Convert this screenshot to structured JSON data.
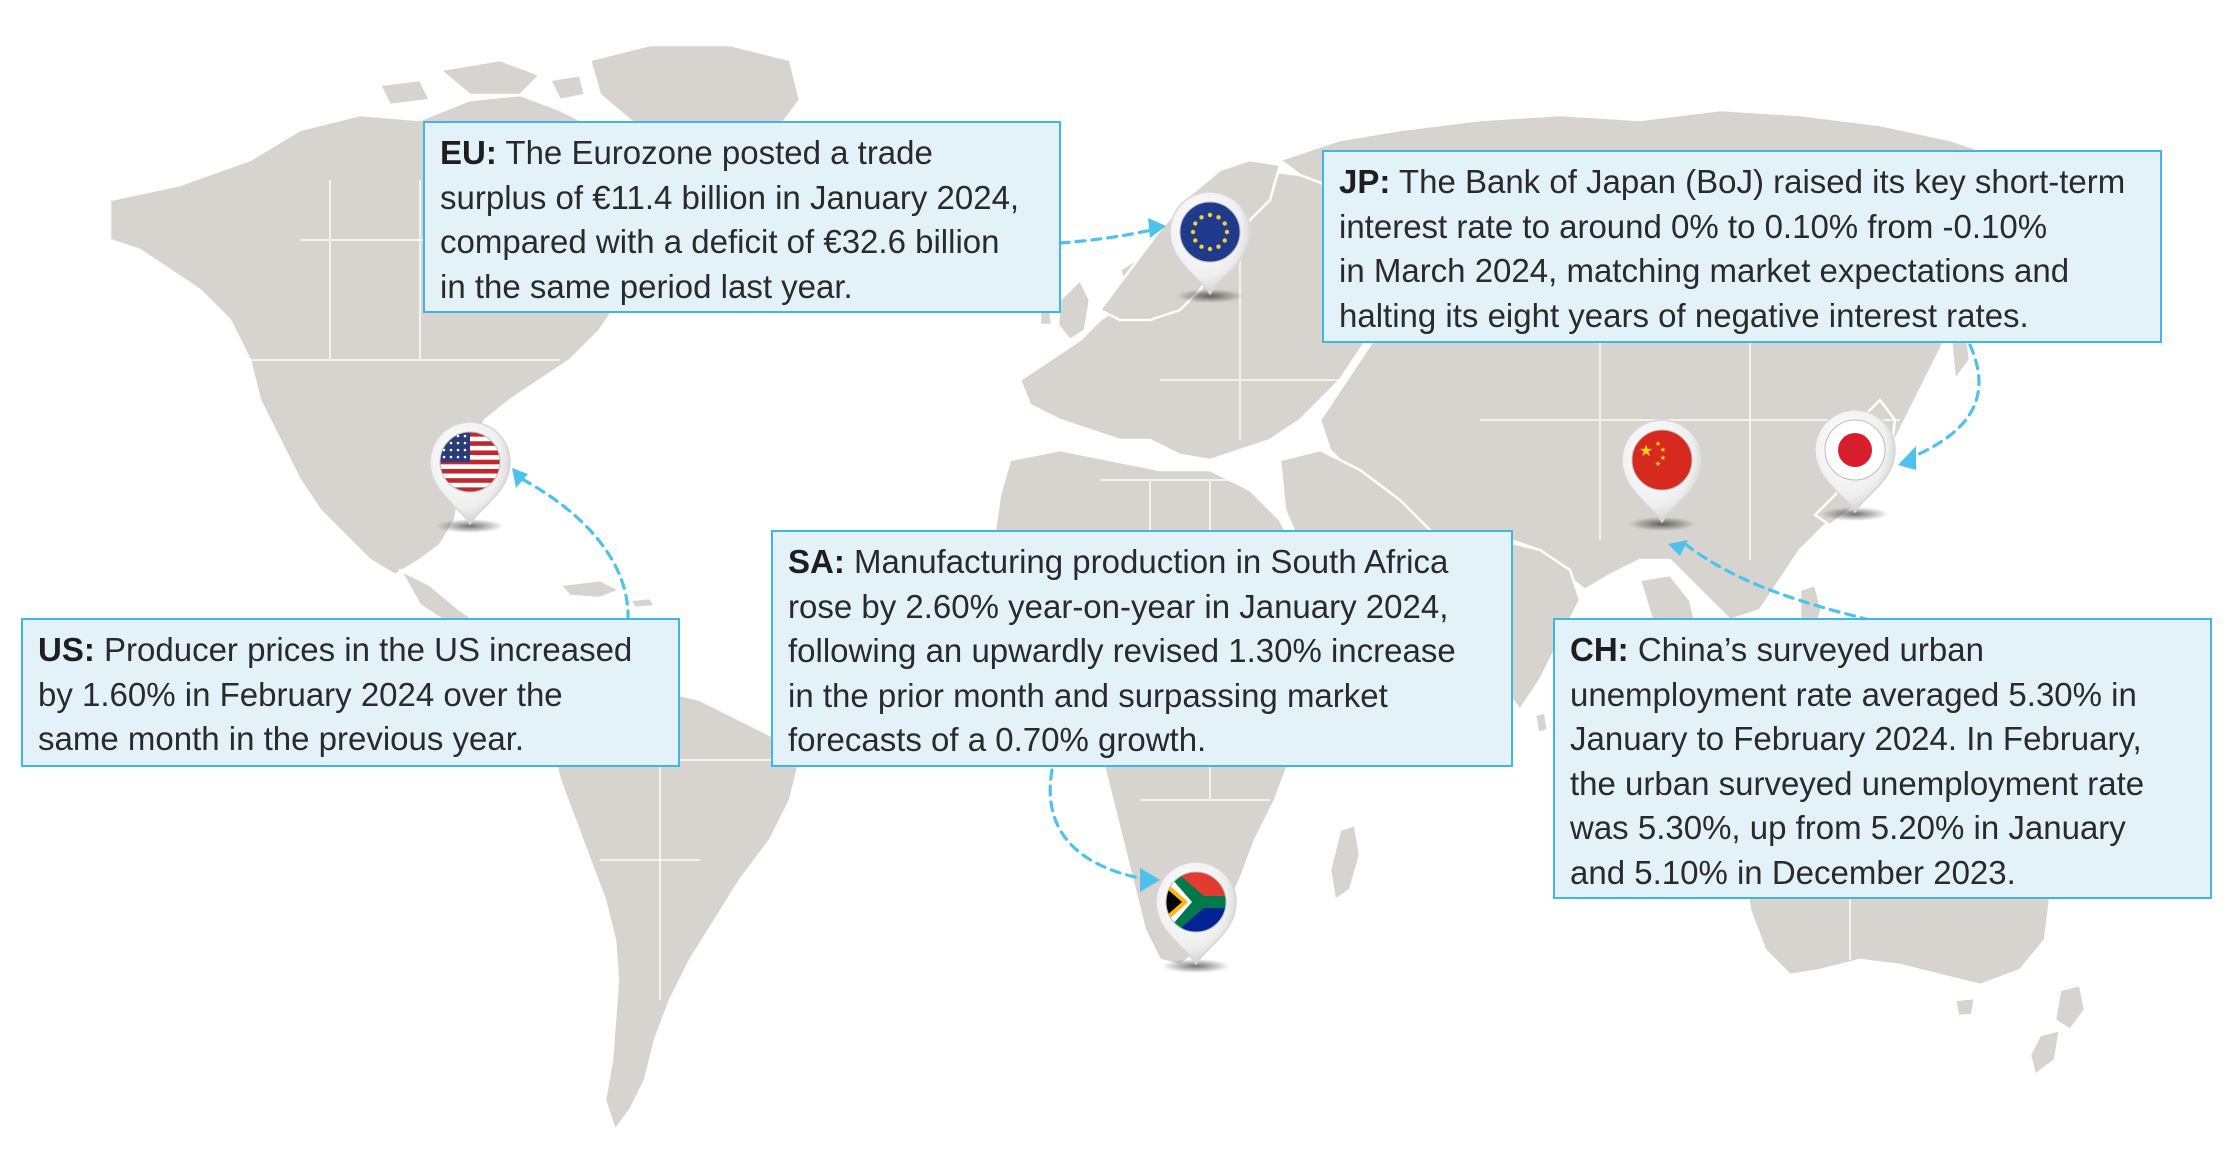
{
  "markers": [
    {
      "id": "eu",
      "name": "EU flag",
      "flag": "eu"
    },
    {
      "id": "us",
      "name": "US flag",
      "flag": "us"
    },
    {
      "id": "jp",
      "name": "Japan flag",
      "flag": "jp"
    },
    {
      "id": "ch",
      "name": "China flag",
      "flag": "cn"
    },
    {
      "id": "sa",
      "name": "South Africa flag",
      "flag": "za"
    }
  ],
  "callouts": {
    "eu": {
      "code": "EU:",
      "lines": [
        " The Eurozone posted a trade",
        "surplus of €11.4 billion in January 2024,",
        "compared with a deficit of €32.6 billion",
        "in the same period last year."
      ]
    },
    "jp": {
      "code": "JP:",
      "lines": [
        " The Bank of Japan (BoJ) raised its key short-term",
        "interest rate to around 0% to 0.10% from -0.10%",
        "in March 2024, matching market expectations and",
        "halting its eight years of negative interest rates."
      ]
    },
    "us": {
      "code": "US:",
      "lines": [
        " Producer prices in the US increased",
        "by 1.60% in February 2024 over the",
        "same month in the previous year."
      ]
    },
    "sa": {
      "code": "SA:",
      "lines": [
        " Manufacturing production in South Africa",
        "rose by 2.60% year-on-year in January 2024,",
        "following an upwardly revised 1.30% increase",
        "in the prior month and surpassing market",
        "forecasts of a 0.70% growth."
      ]
    },
    "ch": {
      "code": "CH:",
      "lines": [
        " China’s surveyed urban",
        "unemployment rate averaged 5.30% in",
        "January to February 2024. In February,",
        "the urban surveyed unemployment rate",
        "was 5.30%, up from 5.20% in January",
        "and 5.10% in December 2023."
      ]
    }
  },
  "colors": {
    "land": "#d7d4cf",
    "callout_fill": "#e3f2f9",
    "callout_border": "#3fb6e5",
    "arrow": "#4ec2ec"
  }
}
